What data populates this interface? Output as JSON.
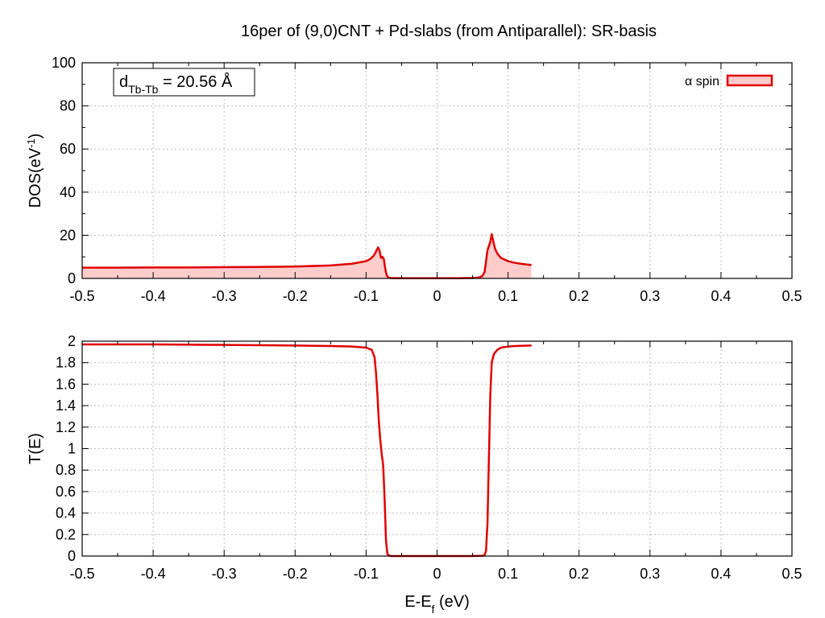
{
  "chart_data": [
    {
      "type": "area",
      "title": "16per of (9,0)CNT + Pd-slabs (from Antiparallel): SR-basis",
      "xlabel": "",
      "ylabel": "DOS(eV-1)",
      "ylabel_parts": {
        "main": "DOS(eV",
        "sup": "-1",
        "tail": ")"
      },
      "xlim": [
        -0.5,
        0.5
      ],
      "ylim": [
        0,
        100
      ],
      "xticks": [
        "-0.5",
        "-0.4",
        "-0.3",
        "-0.2",
        "-0.1",
        "0",
        "0.1",
        "0.2",
        "0.3",
        "0.4",
        "0.5"
      ],
      "yticks": [
        "0",
        "20",
        "40",
        "60",
        "80",
        "100"
      ],
      "grid": true,
      "legend_position": "top-right",
      "annotation": {
        "main": "d",
        "sub": "Tb-Tb",
        "rest": " = 20.56 Å"
      },
      "series": [
        {
          "name": "α spin",
          "color": "#e00000",
          "fill": "#ffcccc",
          "x": [
            -0.5,
            -0.45,
            -0.4,
            -0.35,
            -0.3,
            -0.25,
            -0.2,
            -0.15,
            -0.12,
            -0.1,
            -0.095,
            -0.09,
            -0.087,
            -0.085,
            -0.083,
            -0.081,
            -0.079,
            -0.077,
            -0.075,
            -0.073,
            -0.071,
            -0.069,
            -0.067,
            -0.065,
            -0.06,
            -0.05,
            -0.04,
            -0.03,
            -0.02,
            -0.01,
            0,
            0.01,
            0.02,
            0.03,
            0.04,
            0.05,
            0.055,
            0.06,
            0.064,
            0.067,
            0.069,
            0.071,
            0.073,
            0.075,
            0.077,
            0.078,
            0.08,
            0.082,
            0.085,
            0.09,
            0.1,
            0.11,
            0.12,
            0.133
          ],
          "y": [
            5.0,
            5.0,
            5.1,
            5.1,
            5.2,
            5.3,
            5.5,
            6.0,
            6.8,
            8.0,
            8.8,
            10.3,
            11.8,
            13.2,
            14.4,
            12.8,
            9.5,
            10.0,
            9.0,
            4.5,
            1.5,
            0.5,
            0.3,
            0.2,
            0.15,
            0.1,
            0.1,
            0.1,
            0.1,
            0.1,
            0.1,
            0.1,
            0.1,
            0.1,
            0.2,
            0.2,
            0.3,
            0.5,
            1.2,
            3.0,
            8.0,
            13.0,
            15.0,
            17.0,
            20.5,
            19.0,
            16.0,
            13.5,
            11.5,
            9.5,
            8.0,
            7.2,
            6.7,
            6.2
          ]
        }
      ]
    },
    {
      "type": "line",
      "title": "",
      "xlabel": "E-Ef (eV)",
      "xlabel_parts": {
        "main": "E-E",
        "sub": "f",
        "tail": " (eV)"
      },
      "ylabel": "T(E)",
      "xlim": [
        -0.5,
        0.5
      ],
      "ylim": [
        0,
        2
      ],
      "xticks": [
        "-0.5",
        "-0.4",
        "-0.3",
        "-0.2",
        "-0.1",
        "0",
        "0.1",
        "0.2",
        "0.3",
        "0.4",
        "0.5"
      ],
      "yticks": [
        "0",
        "0.2",
        "0.4",
        "0.6",
        "0.8",
        "1",
        "1.2",
        "1.4",
        "1.6",
        "1.8",
        "2"
      ],
      "grid": true,
      "series": [
        {
          "color": "#e00000",
          "x": [
            -0.5,
            -0.4,
            -0.3,
            -0.2,
            -0.15,
            -0.12,
            -0.1,
            -0.092,
            -0.088,
            -0.086,
            -0.084,
            -0.082,
            -0.08,
            -0.078,
            -0.076,
            -0.074,
            -0.072,
            -0.07,
            -0.068,
            -0.065,
            -0.05,
            0,
            0.05,
            0.065,
            0.067,
            0.069,
            0.071,
            0.073,
            0.075,
            0.077,
            0.08,
            0.085,
            0.09,
            0.1,
            0.11,
            0.133
          ],
          "y": [
            1.97,
            1.97,
            1.965,
            1.96,
            1.955,
            1.95,
            1.94,
            1.92,
            1.85,
            1.7,
            1.5,
            1.25,
            1.08,
            0.95,
            0.85,
            0.55,
            0.15,
            0.02,
            0.005,
            0.0,
            0.0,
            0.0,
            0.0,
            0.003,
            0.01,
            0.05,
            0.3,
            0.9,
            1.5,
            1.8,
            1.88,
            1.92,
            1.94,
            1.95,
            1.955,
            1.96
          ]
        }
      ]
    }
  ]
}
